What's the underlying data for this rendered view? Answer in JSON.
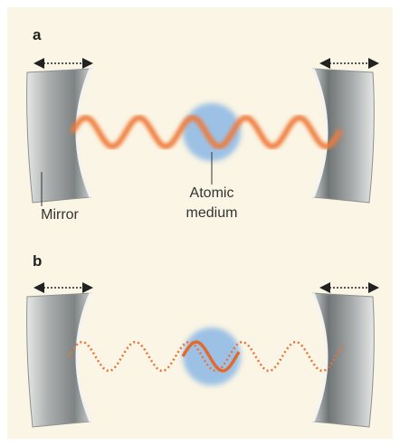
{
  "panels": [
    {
      "label": "a",
      "mirror_label": "Mirror",
      "medium_label": [
        "Atomic",
        "medium"
      ]
    },
    {
      "label": "b"
    }
  ]
}
